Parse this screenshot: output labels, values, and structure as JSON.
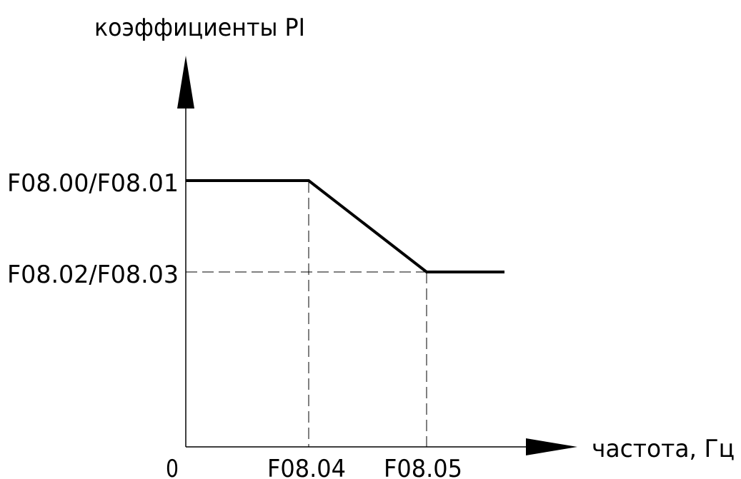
{
  "y_axis_label": "коэффициенты PI",
  "x_axis_label": "частота, Гц",
  "origin_label": "0",
  "y_ticks": {
    "upper": "F08.00/F08.01",
    "lower": "F08.02/F08.03"
  },
  "x_ticks": {
    "first": "F08.04",
    "second": "F08.05"
  },
  "colors": {
    "line": "#000000",
    "background": "#ffffff"
  }
}
